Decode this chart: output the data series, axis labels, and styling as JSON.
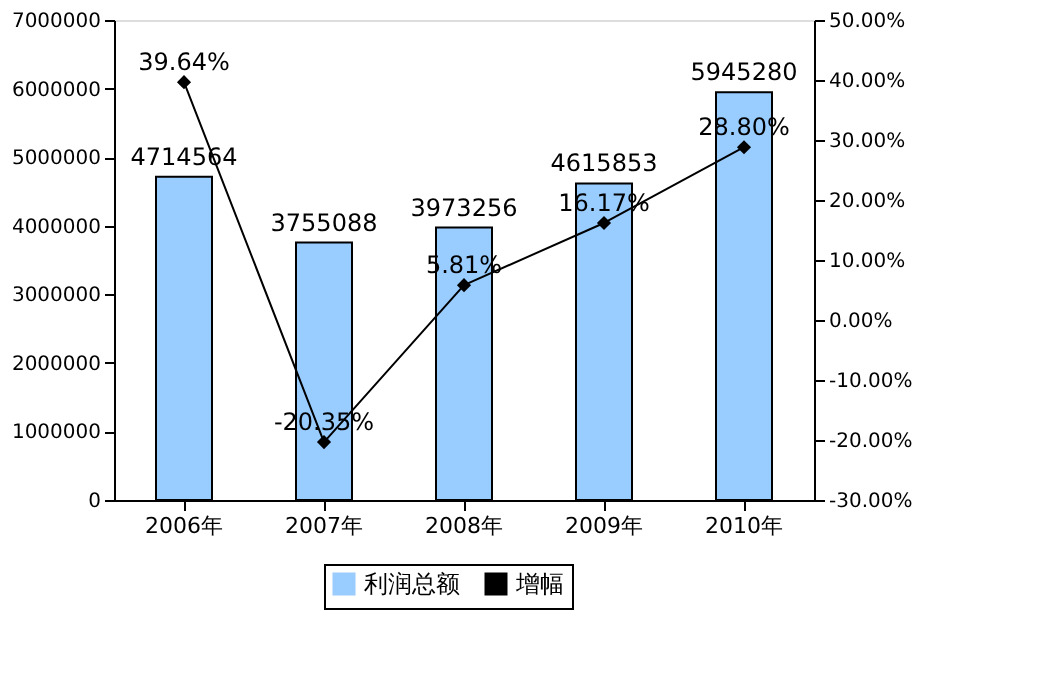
{
  "chart_data": {
    "type": "bar",
    "categories": [
      "2006年",
      "2007年",
      "2008年",
      "2009年",
      "2010年"
    ],
    "series": [
      {
        "name": "利润总额",
        "color": "#99ccff",
        "values": [
          4714564,
          3755088,
          3973256,
          4615853,
          5945280
        ],
        "value_labels": [
          "4714564",
          "3755088",
          "3973256",
          "4615853",
          "5945280"
        ]
      },
      {
        "name": "增幅",
        "type": "line",
        "axis": "y2",
        "color": "#000000",
        "marker": "diamond",
        "values": [
          39.64,
          -20.35,
          5.81,
          16.17,
          28.8
        ],
        "value_labels": [
          "39.64%",
          "-20.35%",
          "5.81%",
          "16.17%",
          "28.80%"
        ]
      }
    ],
    "ylim": [
      0,
      7000000
    ],
    "yticks": [
      0,
      1000000,
      2000000,
      3000000,
      4000000,
      5000000,
      6000000,
      7000000
    ],
    "y2lim": [
      -30,
      50
    ],
    "y2ticks": [
      {
        "value": -30,
        "label": "-30.00%"
      },
      {
        "value": -20,
        "label": "-20.00%"
      },
      {
        "value": -10,
        "label": "-10.00%"
      },
      {
        "value": 0,
        "label": "0.00%"
      },
      {
        "value": 10,
        "label": "10.00%"
      },
      {
        "value": 20,
        "label": "20.00%"
      },
      {
        "value": 30,
        "label": "30.00%"
      },
      {
        "value": 40,
        "label": "40.00%"
      },
      {
        "value": 50,
        "label": "50.00%"
      }
    ],
    "legend": "bottom",
    "grid": false
  }
}
